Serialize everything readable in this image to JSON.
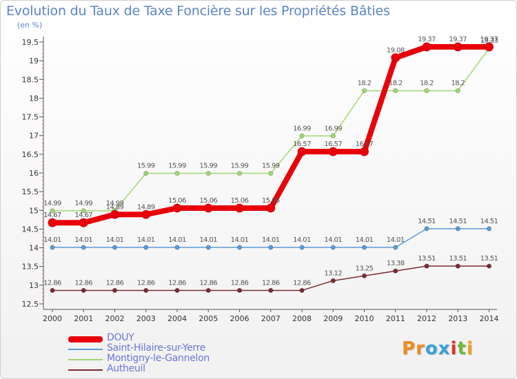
{
  "header": {
    "title": "Evolution du Taux de Taxe Foncière sur les Propriétés Bâties",
    "unit": "(en %)"
  },
  "logo": {
    "text": "Proxiti"
  },
  "colors": {
    "DOUY": "#e8000a",
    "Saint-Hilaire-sur-Yerre": "#5b9bd5",
    "Montigny-le-Gannelon": "#9ed872",
    "Autheuil": "#7a2a30",
    "title": "#5b84c4"
  },
  "chart_data": {
    "type": "line",
    "title": "Evolution du Taux de Taxe Foncière sur les Propriétés Bâties",
    "ylabel": "(en %)",
    "xlabel": "",
    "x": [
      "2000",
      "2001",
      "2002",
      "2003",
      "2004",
      "2005",
      "2006",
      "2007",
      "2008",
      "2009",
      "2010",
      "2011",
      "2012",
      "2013",
      "2014"
    ],
    "yticks": [
      "12.5",
      "13",
      "13.5",
      "14",
      "14.5",
      "15",
      "15.5",
      "16",
      "16.5",
      "17",
      "17.5",
      "18",
      "18.5",
      "19",
      "19.5"
    ],
    "ylim": [
      12.5,
      19.5
    ],
    "grid": false,
    "legend_position": "bottom-left",
    "series": [
      {
        "name": "DOUY",
        "values": [
          14.67,
          14.67,
          14.89,
          14.89,
          15.06,
          15.06,
          15.06,
          15.06,
          16.57,
          16.57,
          16.57,
          19.08,
          19.37,
          19.37,
          19.37
        ],
        "labels": [
          "14.67",
          "14.67",
          "14.89",
          "14.89",
          "15.06",
          "15.06",
          "15.06",
          "15.06",
          "16.57",
          "16.57",
          "16.57",
          "19.08",
          "19.37",
          "19.37",
          "19.37"
        ]
      },
      {
        "name": "Saint-Hilaire-sur-Yerre",
        "values": [
          14.01,
          14.01,
          14.01,
          14.01,
          14.01,
          14.01,
          14.01,
          14.01,
          14.01,
          14.01,
          14.01,
          14.01,
          14.51,
          14.51,
          14.51
        ],
        "labels": [
          "14.01",
          "14.01",
          "14.01",
          "14.01",
          "14.01",
          "14.01",
          "14.01",
          "14.01",
          "14.01",
          "14.01",
          "14.01",
          "14.01",
          "14.51",
          "14.51",
          "14.51"
        ]
      },
      {
        "name": "Montigny-le-Gannelon",
        "values": [
          14.99,
          14.99,
          14.99,
          15.99,
          15.99,
          15.99,
          15.99,
          15.99,
          16.99,
          16.99,
          18.2,
          18.2,
          18.2,
          18.2,
          19.33
        ],
        "labels": [
          "14.99",
          "14.99",
          "14.99",
          "15.99",
          "15.99",
          "15.99",
          "15.99",
          "15.99",
          "16.99",
          "16.99",
          "18.2",
          "18.2",
          "18.2",
          "18.2",
          "19.33"
        ]
      },
      {
        "name": "Autheuil",
        "values": [
          12.86,
          12.86,
          12.86,
          12.86,
          12.86,
          12.86,
          12.86,
          12.86,
          12.86,
          13.12,
          13.25,
          13.38,
          13.51,
          13.51,
          13.51
        ],
        "labels": [
          "12.86",
          "12.86",
          "12.86",
          "12.86",
          "12.86",
          "12.86",
          "12.86",
          "12.86",
          "12.86",
          "13.12",
          "13.25",
          "13.38",
          "13.51",
          "13.51",
          "13.51"
        ]
      }
    ]
  }
}
